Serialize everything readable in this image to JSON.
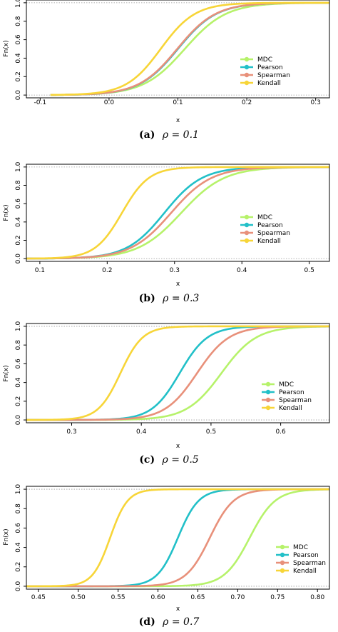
{
  "colors": {
    "MDC": "#b6f26a",
    "Pearson": "#22c0c8",
    "Spearman": "#e8907a",
    "Kendall": "#f7d538"
  },
  "chart_data": [
    {
      "type": "line",
      "caption_label": "(a)",
      "caption_math": "ρ = 0.1",
      "xlabel": "x",
      "ylabel": "Fn(x)",
      "xlim": [
        -0.12,
        0.32
      ],
      "ylim": [
        -0.03,
        1.03
      ],
      "xticks": [
        -0.1,
        0.0,
        0.1,
        0.2,
        0.3
      ],
      "xtick_labels": [
        "-0.1",
        "0.0",
        "0.1",
        "0.2",
        "0.3"
      ],
      "yticks": [
        0,
        0.2,
        0.4,
        0.6,
        0.8,
        1
      ],
      "ytick_labels": [
        "0.0",
        "0.2",
        "0.4",
        "0.6",
        "0.8",
        "1.0"
      ],
      "legend": "right",
      "series": [
        {
          "name": "MDC",
          "center": 0.11,
          "scale": 0.03,
          "min": -0.085,
          "max": 0.32
        },
        {
          "name": "Pearson",
          "center": 0.1,
          "scale": 0.028,
          "min": -0.085,
          "max": 0.32
        },
        {
          "name": "Spearman",
          "center": 0.099,
          "scale": 0.028,
          "min": -0.085,
          "max": 0.32
        },
        {
          "name": "Kendall",
          "center": 0.075,
          "scale": 0.025,
          "min": -0.085,
          "max": 0.32
        }
      ]
    },
    {
      "type": "line",
      "caption_label": "(b)",
      "caption_math": "ρ = 0.3",
      "xlabel": "x",
      "ylabel": "Fn(x)",
      "xlim": [
        0.08,
        0.53
      ],
      "ylim": [
        -0.03,
        1.03
      ],
      "xticks": [
        0.1,
        0.2,
        0.3,
        0.4,
        0.5
      ],
      "xtick_labels": [
        "0.1",
        "0.2",
        "0.3",
        "0.4",
        "0.5"
      ],
      "yticks": [
        0,
        0.2,
        0.4,
        0.6,
        0.8,
        1
      ],
      "ytick_labels": [
        "0.0",
        "0.2",
        "0.4",
        "0.6",
        "0.8",
        "1.0"
      ],
      "legend": "right",
      "series": [
        {
          "name": "MDC",
          "center": 0.31,
          "scale": 0.032,
          "min": 0.08,
          "max": 0.53
        },
        {
          "name": "Pearson",
          "center": 0.285,
          "scale": 0.028,
          "min": 0.08,
          "max": 0.53
        },
        {
          "name": "Spearman",
          "center": 0.295,
          "scale": 0.03,
          "min": 0.08,
          "max": 0.53
        },
        {
          "name": "Kendall",
          "center": 0.222,
          "scale": 0.02,
          "min": 0.08,
          "max": 0.53
        }
      ]
    },
    {
      "type": "line",
      "caption_label": "(c)",
      "caption_math": "ρ = 0.5",
      "xlabel": "x",
      "ylabel": "Fn(x)",
      "xlim": [
        0.235,
        0.67
      ],
      "ylim": [
        -0.03,
        1.03
      ],
      "xticks": [
        0.3,
        0.4,
        0.5,
        0.6
      ],
      "xtick_labels": [
        "0.3",
        "0.4",
        "0.5",
        "0.6"
      ],
      "yticks": [
        0,
        0.2,
        0.4,
        0.6,
        0.8,
        1
      ],
      "ytick_labels": [
        "0.0",
        "0.2",
        "0.4",
        "0.6",
        "0.8",
        "1.0"
      ],
      "legend": "bottom-right",
      "series": [
        {
          "name": "MDC",
          "center": 0.515,
          "scale": 0.025,
          "min": 0.235,
          "max": 0.67
        },
        {
          "name": "Pearson",
          "center": 0.455,
          "scale": 0.02,
          "min": 0.235,
          "max": 0.67
        },
        {
          "name": "Spearman",
          "center": 0.48,
          "scale": 0.023,
          "min": 0.235,
          "max": 0.67
        },
        {
          "name": "Kendall",
          "center": 0.37,
          "scale": 0.016,
          "min": 0.235,
          "max": 0.67
        }
      ]
    },
    {
      "type": "line",
      "caption_label": "(d)",
      "caption_math": "ρ = 0.7",
      "xlabel": "x",
      "ylabel": "Fn(x)",
      "xlim": [
        0.435,
        0.815
      ],
      "ylim": [
        -0.03,
        1.03
      ],
      "xticks": [
        0.45,
        0.5,
        0.55,
        0.6,
        0.65,
        0.7,
        0.75,
        0.8
      ],
      "xtick_labels": [
        "0.45",
        "0.50",
        "0.55",
        "0.60",
        "0.65",
        "0.70",
        "0.75",
        "0.80"
      ],
      "yticks": [
        0,
        0.2,
        0.4,
        0.6,
        0.8,
        1
      ],
      "ytick_labels": [
        "0.0",
        "0.2",
        "0.4",
        "0.6",
        "0.8",
        "1.0"
      ],
      "legend": "bottom-right",
      "series": [
        {
          "name": "MDC",
          "center": 0.715,
          "scale": 0.016,
          "min": 0.435,
          "max": 0.815
        },
        {
          "name": "Pearson",
          "center": 0.625,
          "scale": 0.013,
          "min": 0.435,
          "max": 0.815
        },
        {
          "name": "Spearman",
          "center": 0.665,
          "scale": 0.015,
          "min": 0.435,
          "max": 0.815
        },
        {
          "name": "Kendall",
          "center": 0.54,
          "scale": 0.011,
          "min": 0.435,
          "max": 0.815
        }
      ]
    }
  ]
}
